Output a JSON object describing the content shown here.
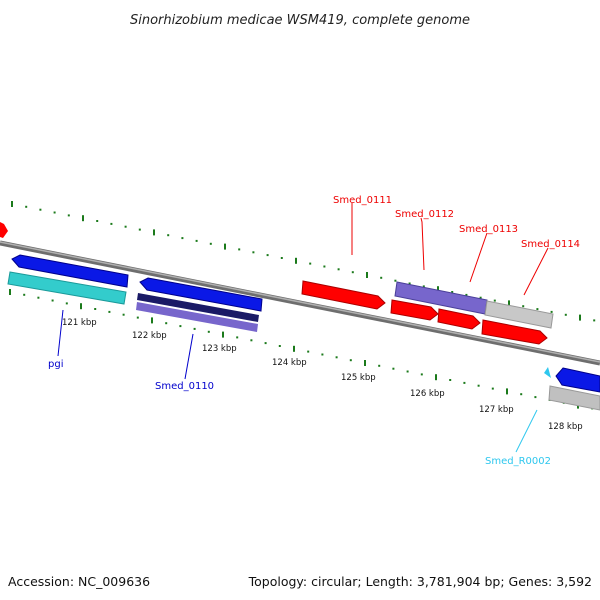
{
  "header": {
    "title": "Sinorhizobium medicae WSM419, complete genome"
  },
  "footer": {
    "accession": "Accession: NC_009636",
    "summary": "Topology: circular; Length: 3,781,904 bp; Genes: 3,592"
  },
  "ruler": {
    "labels": [
      "121 kbp",
      "122 kbp",
      "123 kbp",
      "124 kbp",
      "125 kbp",
      "126 kbp",
      "127 kbp",
      "128 kbp"
    ]
  },
  "genes": {
    "forward_labels": [
      "Smed_0111",
      "Smed_0112",
      "Smed_0113",
      "Smed_0114"
    ],
    "reverse_labels": [
      "pgi",
      "Smed_0110"
    ],
    "rna_labels": [
      "Smed_R0002"
    ]
  },
  "colors": {
    "forward_cds": "#ff0000",
    "reverse_cds": "#0000ff",
    "rna": "#2ec7ee",
    "tick": "#1b7a1b",
    "backbone": "#808080",
    "cog_cyan": "#33cccc",
    "cog_purple": "#7766cc",
    "cog_navy": "#1a1a66",
    "cog_gray": "#c0c0c0"
  }
}
